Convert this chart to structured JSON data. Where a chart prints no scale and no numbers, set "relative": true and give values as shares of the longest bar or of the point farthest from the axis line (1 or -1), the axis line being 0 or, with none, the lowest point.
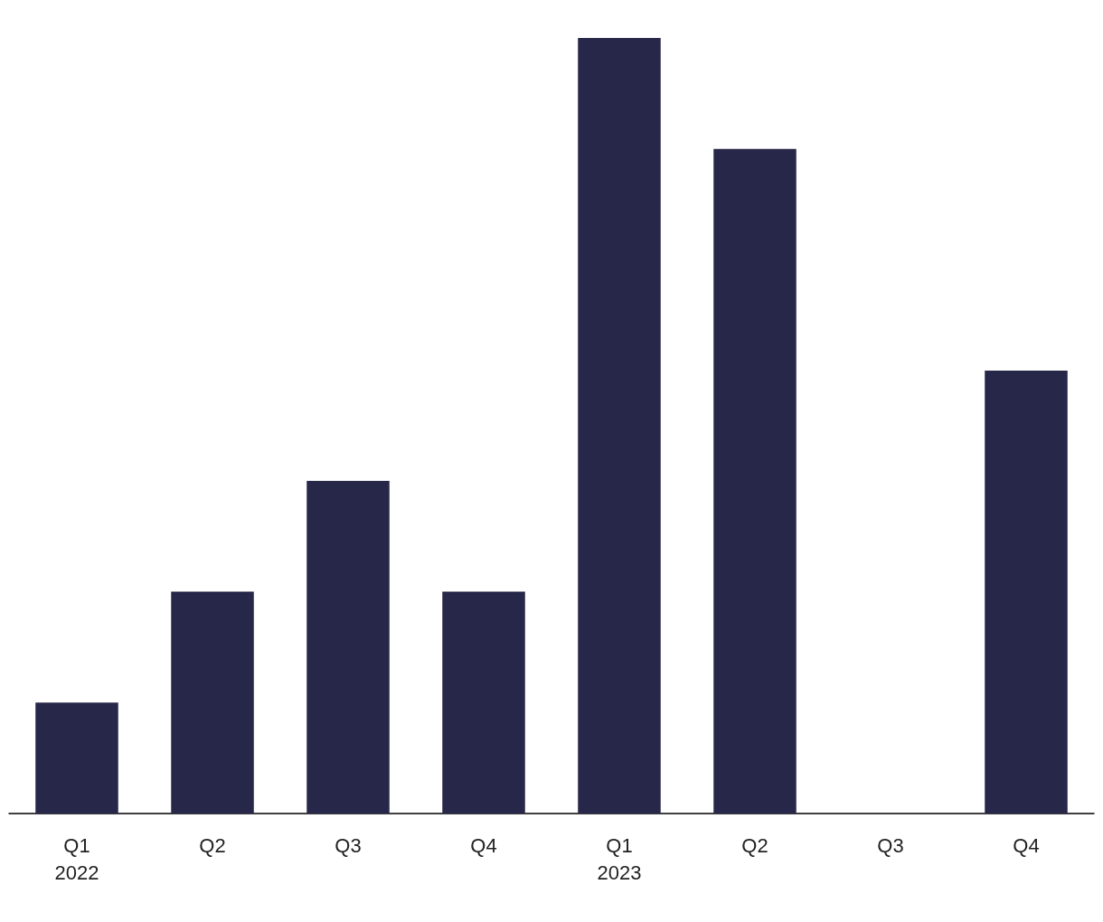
{
  "chart_data": {
    "type": "bar",
    "relative": true,
    "categories": [
      "Q1\n2022",
      "Q2",
      "Q3",
      "Q4",
      "Q1\n2023",
      "Q2",
      "Q3",
      "Q4"
    ],
    "values": [
      0.143,
      0.286,
      0.429,
      0.286,
      1,
      0.857,
      0,
      0.571
    ],
    "color": "#27274a"
  }
}
